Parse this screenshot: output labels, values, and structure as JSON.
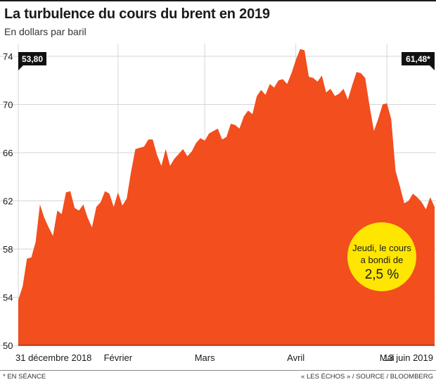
{
  "title": "La turbulence du cours du brent en 2019",
  "subtitle": "En dollars par baril",
  "footnote": "* EN SÉANCE",
  "source": "« LES ÉCHOS » / SOURCE / BLOOMBERG",
  "colors": {
    "area": "#f24e1e",
    "grid": "#d6d6d6",
    "callout_bg": "#ffe600",
    "label_bg": "#111111",
    "label_text": "#ffffff",
    "text": "#1a1a1a"
  },
  "chart_data": {
    "type": "area",
    "ylim": [
      50,
      74
    ],
    "y_ticks": [
      "74",
      "70",
      "66",
      "62",
      "58",
      "54",
      "50"
    ],
    "y_tick_values": [
      74,
      70,
      66,
      62,
      58,
      54,
      50
    ],
    "x_labels": [
      {
        "label": "31 décembre 2018",
        "index": 0
      },
      {
        "label": "Février",
        "index": 23
      },
      {
        "label": "Mars",
        "index": 43
      },
      {
        "label": "Avril",
        "index": 64
      },
      {
        "label": "Mai",
        "index": 85
      },
      {
        "label": "13 juin 2019",
        "index": 115
      }
    ],
    "start_label": "53,80",
    "end_label": "61,48*",
    "callout": {
      "line1": "Jeudi, le cours",
      "line2": "a bondi de",
      "value": "2,5 %"
    },
    "values": [
      53.8,
      54.9,
      57.2,
      57.3,
      58.6,
      61.7,
      60.6,
      59.8,
      59.1,
      61.2,
      60.9,
      62.7,
      62.8,
      61.4,
      61.2,
      61.7,
      60.6,
      59.8,
      61.5,
      61.9,
      62.8,
      62.6,
      61.5,
      62.7,
      61.6,
      62.2,
      64.4,
      66.3,
      66.4,
      66.5,
      67.1,
      67.1,
      65.8,
      64.9,
      66.3,
      64.9,
      65.5,
      65.9,
      66.3,
      65.7,
      66.1,
      66.8,
      67.2,
      67.0,
      67.6,
      67.8,
      68.0,
      67.1,
      67.3,
      68.4,
      68.3,
      68.0,
      69.0,
      69.5,
      69.2,
      70.7,
      71.2,
      70.8,
      71.7,
      71.4,
      72.0,
      72.1,
      71.7,
      72.6,
      73.7,
      74.6,
      74.5,
      72.3,
      72.2,
      71.9,
      72.4,
      71.0,
      71.3,
      70.7,
      70.9,
      71.3,
      70.4,
      71.6,
      72.7,
      72.6,
      72.2,
      69.9,
      67.8,
      68.8,
      70.0,
      70.1,
      68.8,
      64.5,
      63.2,
      61.8,
      62.0,
      62.6,
      62.3,
      61.9,
      61.3,
      62.3,
      61.5
    ]
  }
}
